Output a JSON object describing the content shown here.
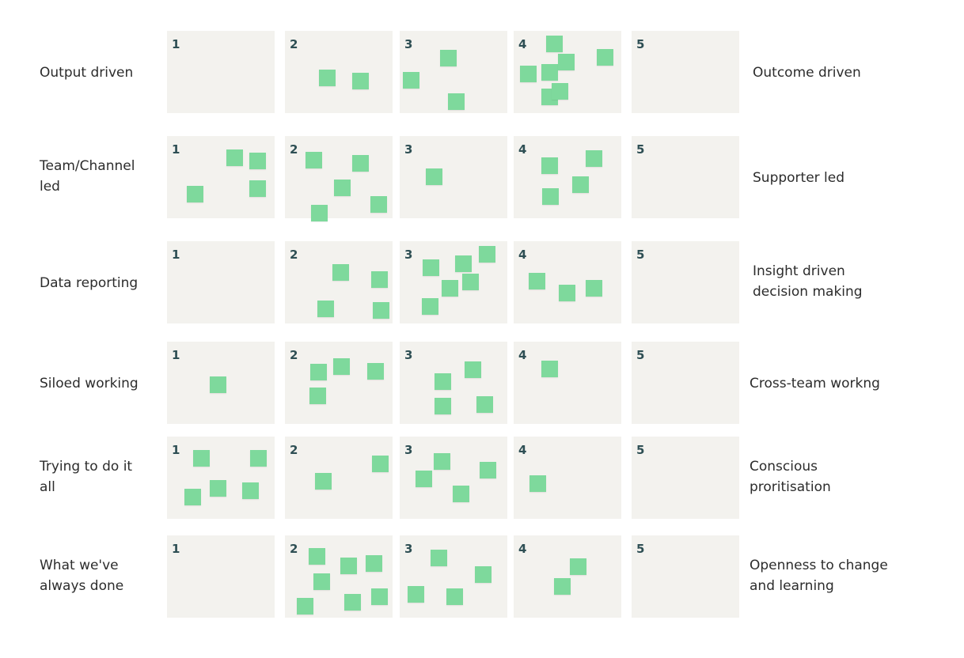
{
  "board": {
    "rows": [
      {
        "left_label": "Output driven",
        "right_label": "Outcome driven",
        "cells": [
          {
            "number": "1",
            "sticky_notes": 0
          },
          {
            "number": "2",
            "sticky_notes": 2
          },
          {
            "number": "3",
            "sticky_notes": 3
          },
          {
            "number": "4",
            "sticky_notes": 7
          },
          {
            "number": "5",
            "sticky_notes": 0
          }
        ]
      },
      {
        "left_label": "Team/Channel\nled",
        "right_label": "Supporter led",
        "cells": [
          {
            "number": "1",
            "sticky_notes": 4
          },
          {
            "number": "2",
            "sticky_notes": 5
          },
          {
            "number": "3",
            "sticky_notes": 1
          },
          {
            "number": "4",
            "sticky_notes": 4
          },
          {
            "number": "5",
            "sticky_notes": 0
          }
        ]
      },
      {
        "left_label": "Data reporting",
        "right_label": "Insight driven\ndecision making",
        "cells": [
          {
            "number": "1",
            "sticky_notes": 0
          },
          {
            "number": "2",
            "sticky_notes": 4
          },
          {
            "number": "3",
            "sticky_notes": 6
          },
          {
            "number": "4",
            "sticky_notes": 3
          },
          {
            "number": "5",
            "sticky_notes": 0
          }
        ]
      },
      {
        "left_label": "Siloed working",
        "right_label": "Cross-team workng",
        "cells": [
          {
            "number": "1",
            "sticky_notes": 1
          },
          {
            "number": "2",
            "sticky_notes": 4
          },
          {
            "number": "3",
            "sticky_notes": 4
          },
          {
            "number": "4",
            "sticky_notes": 1
          },
          {
            "number": "5",
            "sticky_notes": 0
          }
        ]
      },
      {
        "left_label": "Trying to do it\nall",
        "right_label": "Conscious\nproritisation",
        "cells": [
          {
            "number": "1",
            "sticky_notes": 5
          },
          {
            "number": "2",
            "sticky_notes": 2
          },
          {
            "number": "3",
            "sticky_notes": 4
          },
          {
            "number": "4",
            "sticky_notes": 1
          },
          {
            "number": "5",
            "sticky_notes": 0
          }
        ]
      },
      {
        "left_label": "What we've\nalways done",
        "right_label": "Openness to change\nand learning",
        "cells": [
          {
            "number": "1",
            "sticky_notes": 0
          },
          {
            "number": "2",
            "sticky_notes": 7
          },
          {
            "number": "3",
            "sticky_notes": 4
          },
          {
            "number": "4",
            "sticky_notes": 2
          },
          {
            "number": "5",
            "sticky_notes": 0
          }
        ]
      }
    ],
    "colors": {
      "cell_background": "#f3f2ee",
      "sticky_note": "#7ed99c",
      "cell_number": "#2e4f54",
      "label_text": "#2c2c2c"
    }
  }
}
